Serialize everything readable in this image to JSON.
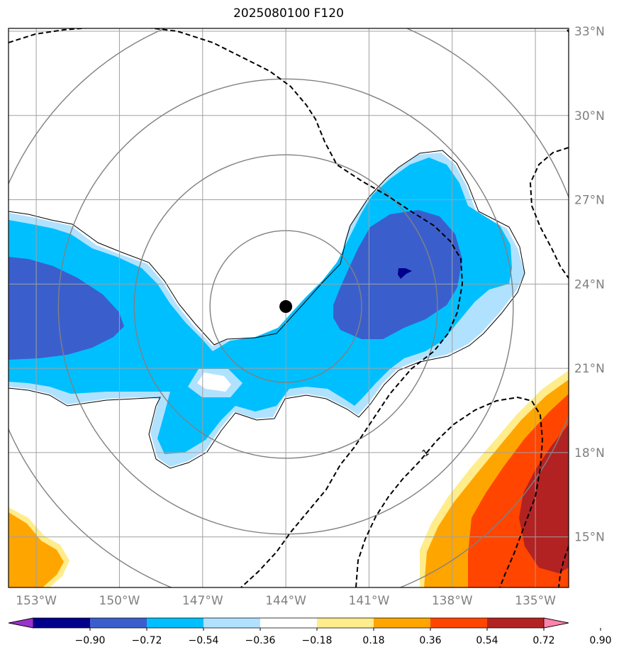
{
  "title": "2025080100 F120",
  "storm_center": {
    "lon": -144.0,
    "lat": 23.2
  },
  "axes": {
    "lon_range": [
      -154.0,
      -133.8
    ],
    "lat_range": [
      13.2,
      33.1
    ],
    "lon_ticks": [
      {
        "value": -153,
        "label": "153°W"
      },
      {
        "value": -150,
        "label": "150°W"
      },
      {
        "value": -147,
        "label": "147°W"
      },
      {
        "value": -144,
        "label": "144°W"
      },
      {
        "value": -141,
        "label": "141°W"
      },
      {
        "value": -138,
        "label": "138°W"
      },
      {
        "value": -135,
        "label": "135°W"
      }
    ],
    "lat_ticks": [
      {
        "value": 33,
        "label": "33°N"
      },
      {
        "value": 30,
        "label": "30°N"
      },
      {
        "value": 27,
        "label": "27°N"
      },
      {
        "value": 24,
        "label": "24°N"
      },
      {
        "value": 21,
        "label": "21°N"
      },
      {
        "value": 18,
        "label": "18°N"
      },
      {
        "value": 15,
        "label": "15°N"
      }
    ],
    "grid": true
  },
  "range_rings_deg": [
    2.7,
    5.4,
    8.1,
    10.8
  ],
  "colorbar": {
    "levels": [
      "−0.90",
      "−0.72",
      "−0.54",
      "−0.36",
      "−0.18",
      "0.18",
      "0.36",
      "0.54",
      "0.72",
      "0.90"
    ],
    "colors": [
      "#9932CC",
      "#00008B",
      "#3A5FCD",
      "#00BFFF",
      "#B0E2FF",
      "#FFFFFF",
      "#FFEC8B",
      "#FFA500",
      "#FF4500",
      "#B22222",
      "#FF82AB"
    ],
    "extend": "both"
  },
  "contour_label": "1"
}
